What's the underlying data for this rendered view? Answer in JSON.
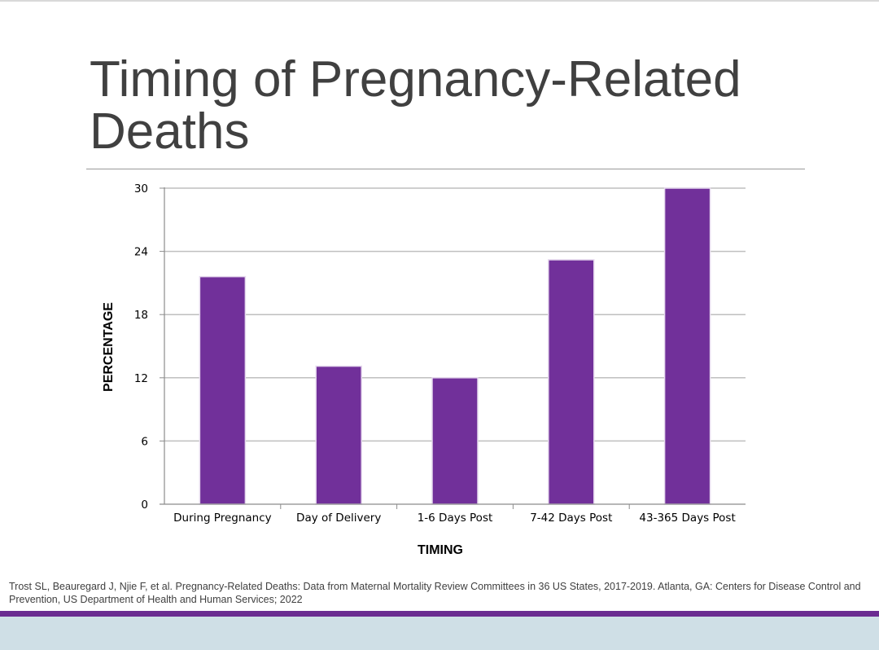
{
  "slide": {
    "title": "Timing of Pregnancy-Related Deaths",
    "citation": "Trost SL, Beauregard J, Njie F, et al. Pregnancy-Related Deaths: Data from Maternal Mortality Review Committees in 36 US States, 2017-2019. Atlanta, GA: Centers for Disease Control and Prevention, US Department of Health and Human Services; 2022"
  },
  "theme": {
    "bar_color": "#71309a",
    "grid_color": "#bfbfbf",
    "title_color": "#404040",
    "stripe_color": "#6b2c91",
    "band_color": "#cfdfe6"
  },
  "chart_data": {
    "type": "bar",
    "title": "",
    "xlabel": "TIMING",
    "ylabel": "PERCENTAGE",
    "ylim": [
      0,
      30
    ],
    "yticks": [
      0,
      6,
      12,
      18,
      24,
      30
    ],
    "grid": true,
    "legend": "none",
    "categories": [
      "During Pregnancy",
      "Day of Delivery",
      "1-6 Days Post",
      "7-42 Days Post",
      "43-365 Days Post"
    ],
    "series": [
      {
        "name": "Percentage",
        "values": [
          21.6,
          13.1,
          12.0,
          23.2,
          30.0
        ]
      }
    ]
  }
}
